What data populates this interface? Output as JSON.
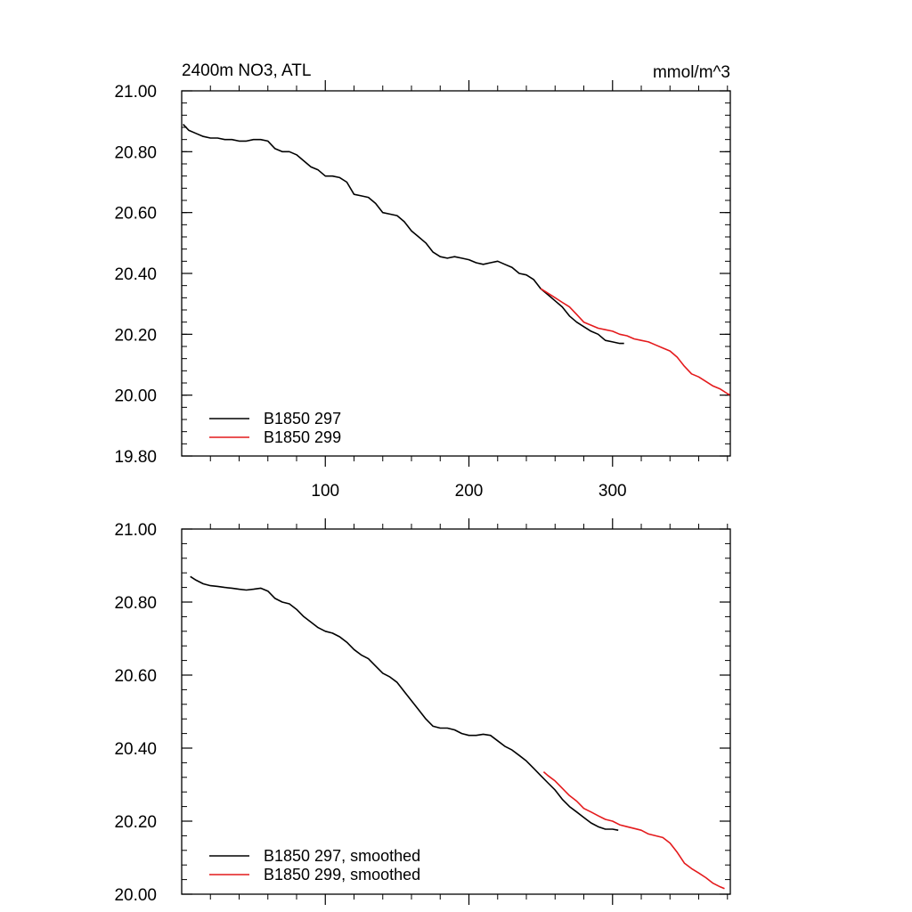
{
  "chart_data": [
    {
      "type": "line",
      "title": "2400m NO3, ATL",
      "units": "mmol/m^3",
      "xlim": [
        0,
        382
      ],
      "ylim": [
        19.8,
        21.0
      ],
      "yticks": [
        "19.80",
        "20.00",
        "20.20",
        "20.40",
        "20.60",
        "20.80",
        "21.00"
      ],
      "xticks": [
        "100",
        "200",
        "300"
      ],
      "legend_position": "bottom-left",
      "series": [
        {
          "name": "B1850 297",
          "color": "#000000",
          "x": [
            1,
            5,
            10,
            15,
            20,
            25,
            30,
            35,
            40,
            45,
            50,
            55,
            60,
            65,
            70,
            75,
            80,
            85,
            90,
            95,
            100,
            105,
            110,
            115,
            120,
            125,
            130,
            135,
            140,
            145,
            150,
            155,
            160,
            165,
            170,
            175,
            180,
            185,
            190,
            195,
            200,
            205,
            210,
            215,
            220,
            225,
            230,
            235,
            240,
            245,
            250,
            255,
            260,
            265,
            270,
            275,
            280,
            285,
            290,
            295,
            300,
            305,
            308
          ],
          "y": [
            20.89,
            20.87,
            20.86,
            20.85,
            20.845,
            20.845,
            20.84,
            20.84,
            20.835,
            20.835,
            20.84,
            20.84,
            20.835,
            20.81,
            20.8,
            20.8,
            20.79,
            20.77,
            20.75,
            20.74,
            20.72,
            20.72,
            20.715,
            20.7,
            20.66,
            20.655,
            20.65,
            20.63,
            20.6,
            20.595,
            20.59,
            20.57,
            20.54,
            20.52,
            20.5,
            20.47,
            20.455,
            20.45,
            20.455,
            20.45,
            20.445,
            20.435,
            20.43,
            20.435,
            20.44,
            20.43,
            20.42,
            20.4,
            20.395,
            20.38,
            20.35,
            20.33,
            20.31,
            20.29,
            20.26,
            20.24,
            20.225,
            20.21,
            20.2,
            20.18,
            20.175,
            20.17,
            20.17
          ]
        },
        {
          "name": "B1850 299",
          "color": "#e41a1c",
          "x": [
            250,
            255,
            260,
            265,
            270,
            275,
            280,
            285,
            290,
            295,
            300,
            305,
            310,
            315,
            320,
            325,
            330,
            335,
            340,
            345,
            350,
            355,
            360,
            365,
            370,
            375,
            380,
            382
          ],
          "y": [
            20.35,
            20.335,
            20.32,
            20.305,
            20.29,
            20.265,
            20.24,
            20.23,
            20.22,
            20.215,
            20.21,
            20.2,
            20.195,
            20.185,
            20.18,
            20.175,
            20.165,
            20.155,
            20.145,
            20.125,
            20.095,
            20.07,
            20.06,
            20.045,
            20.03,
            20.02,
            20.005,
            20.0
          ]
        }
      ]
    },
    {
      "type": "line",
      "xlim": [
        0,
        382
      ],
      "ylim": [
        20.0,
        21.0
      ],
      "yticks": [
        "20.00",
        "20.20",
        "20.40",
        "20.60",
        "20.80",
        "21.00"
      ],
      "legend_position": "bottom-left",
      "series": [
        {
          "name": "B1850 297, smoothed",
          "color": "#000000",
          "x": [
            6,
            10,
            15,
            20,
            25,
            30,
            35,
            40,
            45,
            50,
            55,
            60,
            65,
            70,
            75,
            80,
            85,
            90,
            95,
            100,
            105,
            110,
            115,
            120,
            125,
            130,
            135,
            140,
            145,
            150,
            155,
            160,
            165,
            170,
            175,
            180,
            185,
            190,
            195,
            200,
            205,
            210,
            215,
            220,
            225,
            230,
            235,
            240,
            245,
            250,
            255,
            260,
            265,
            270,
            275,
            280,
            285,
            290,
            295,
            300,
            304
          ],
          "y": [
            20.87,
            20.86,
            20.85,
            20.845,
            20.843,
            20.84,
            20.838,
            20.835,
            20.833,
            20.835,
            20.838,
            20.83,
            20.81,
            20.8,
            20.795,
            20.78,
            20.76,
            20.745,
            20.73,
            20.72,
            20.715,
            20.705,
            20.69,
            20.67,
            20.655,
            20.645,
            20.625,
            20.605,
            20.595,
            20.58,
            20.555,
            20.53,
            20.505,
            20.48,
            20.46,
            20.455,
            20.455,
            20.45,
            20.44,
            20.435,
            20.435,
            20.438,
            20.435,
            20.42,
            20.405,
            20.395,
            20.38,
            20.365,
            20.345,
            20.325,
            20.305,
            20.285,
            20.26,
            20.24,
            20.225,
            20.21,
            20.195,
            20.185,
            20.178,
            20.178,
            20.175
          ]
        },
        {
          "name": "B1850 299, smoothed",
          "color": "#e41a1c",
          "x": [
            252,
            255,
            260,
            265,
            270,
            275,
            280,
            285,
            290,
            295,
            300,
            305,
            310,
            315,
            320,
            325,
            330,
            335,
            340,
            345,
            350,
            355,
            360,
            365,
            370,
            375,
            378
          ],
          "y": [
            20.335,
            20.325,
            20.31,
            20.29,
            20.27,
            20.255,
            20.235,
            20.225,
            20.215,
            20.205,
            20.2,
            20.19,
            20.185,
            20.18,
            20.175,
            20.165,
            20.16,
            20.155,
            20.14,
            20.115,
            20.085,
            20.07,
            20.058,
            20.045,
            20.03,
            20.02,
            20.015
          ]
        }
      ]
    }
  ]
}
